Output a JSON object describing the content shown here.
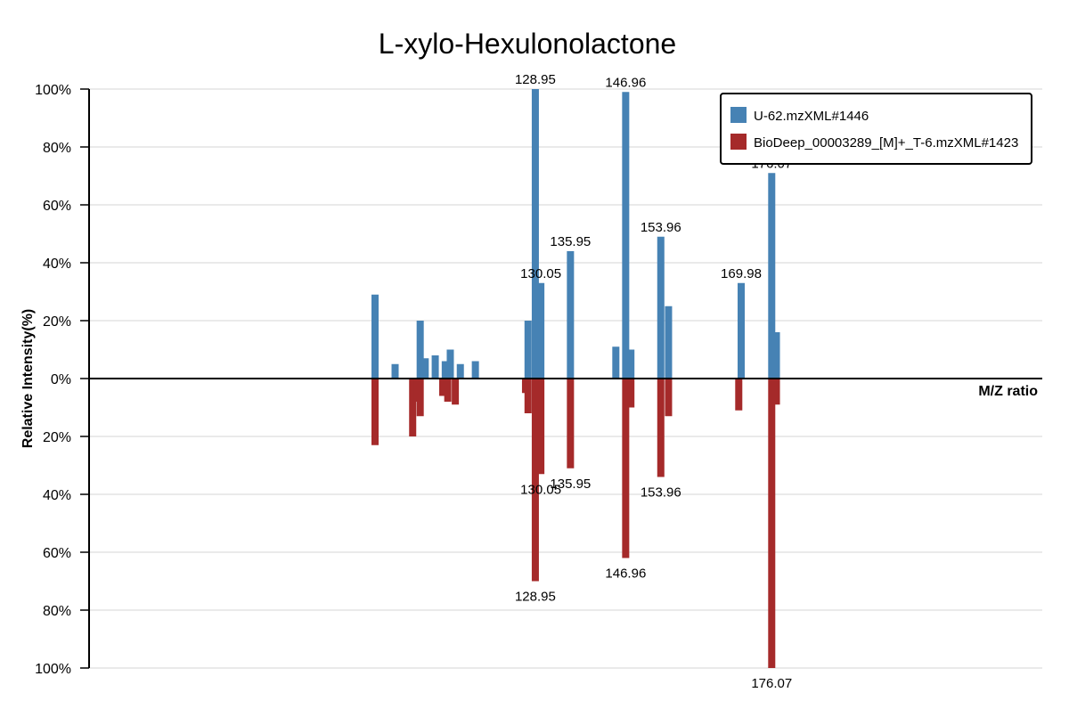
{
  "chart_data": {
    "type": "bar",
    "title": "L-xylo-Hexulonolactone",
    "xlabel": "M/Z ratio",
    "ylabel": "Relative Intensity(%)",
    "ylim": [
      -100,
      100
    ],
    "y_ticks": [
      "100%",
      "80%",
      "60%",
      "40%",
      "20%",
      "0%",
      "20%",
      "40%",
      "60%",
      "80%",
      "100%"
    ],
    "grid": true,
    "legend_position": "top-right",
    "series": [
      {
        "name": "U-62.mzXML#1446",
        "color": "#4682b4",
        "peaks": [
          {
            "mz": 97.0,
            "intensity": 29
          },
          {
            "mz": 101.0,
            "intensity": 5
          },
          {
            "mz": 106.0,
            "intensity": 20
          },
          {
            "mz": 107.0,
            "intensity": 7
          },
          {
            "mz": 109.0,
            "intensity": 8
          },
          {
            "mz": 111.0,
            "intensity": 6
          },
          {
            "mz": 112.0,
            "intensity": 10
          },
          {
            "mz": 114.0,
            "intensity": 5
          },
          {
            "mz": 117.0,
            "intensity": 6
          },
          {
            "mz": 127.5,
            "intensity": 20
          },
          {
            "mz": 128.95,
            "intensity": 100,
            "label": "128.95"
          },
          {
            "mz": 130.05,
            "intensity": 33,
            "label": "130.05"
          },
          {
            "mz": 135.95,
            "intensity": 44,
            "label": "135.95"
          },
          {
            "mz": 145.0,
            "intensity": 11
          },
          {
            "mz": 146.96,
            "intensity": 99,
            "label": "146.96"
          },
          {
            "mz": 148.0,
            "intensity": 10
          },
          {
            "mz": 153.96,
            "intensity": 49,
            "label": "153.96"
          },
          {
            "mz": 155.5,
            "intensity": 25
          },
          {
            "mz": 169.98,
            "intensity": 33,
            "label": "169.98"
          },
          {
            "mz": 176.07,
            "intensity": 71,
            "label": "176.07"
          },
          {
            "mz": 177.0,
            "intensity": 16
          }
        ]
      },
      {
        "name": "BioDeep_00003289_[M]+_T-6.mzXML#1423",
        "color": "#a52a2a",
        "peaks": [
          {
            "mz": 97.0,
            "intensity": 23
          },
          {
            "mz": 104.5,
            "intensity": 20
          },
          {
            "mz": 105.5,
            "intensity": 8
          },
          {
            "mz": 106.0,
            "intensity": 13
          },
          {
            "mz": 110.5,
            "intensity": 6
          },
          {
            "mz": 111.5,
            "intensity": 8
          },
          {
            "mz": 113.0,
            "intensity": 9
          },
          {
            "mz": 127.0,
            "intensity": 5
          },
          {
            "mz": 127.5,
            "intensity": 12
          },
          {
            "mz": 128.95,
            "intensity": 70,
            "label": "128.95"
          },
          {
            "mz": 130.05,
            "intensity": 33,
            "label": "130.05"
          },
          {
            "mz": 135.95,
            "intensity": 31,
            "label": "135.95"
          },
          {
            "mz": 146.96,
            "intensity": 62,
            "label": "146.96"
          },
          {
            "mz": 148.0,
            "intensity": 10
          },
          {
            "mz": 153.96,
            "intensity": 34,
            "label": "153.96"
          },
          {
            "mz": 155.5,
            "intensity": 13
          },
          {
            "mz": 169.5,
            "intensity": 11
          },
          {
            "mz": 176.07,
            "intensity": 100,
            "label": "176.07"
          },
          {
            "mz": 177.0,
            "intensity": 9
          }
        ]
      }
    ]
  }
}
